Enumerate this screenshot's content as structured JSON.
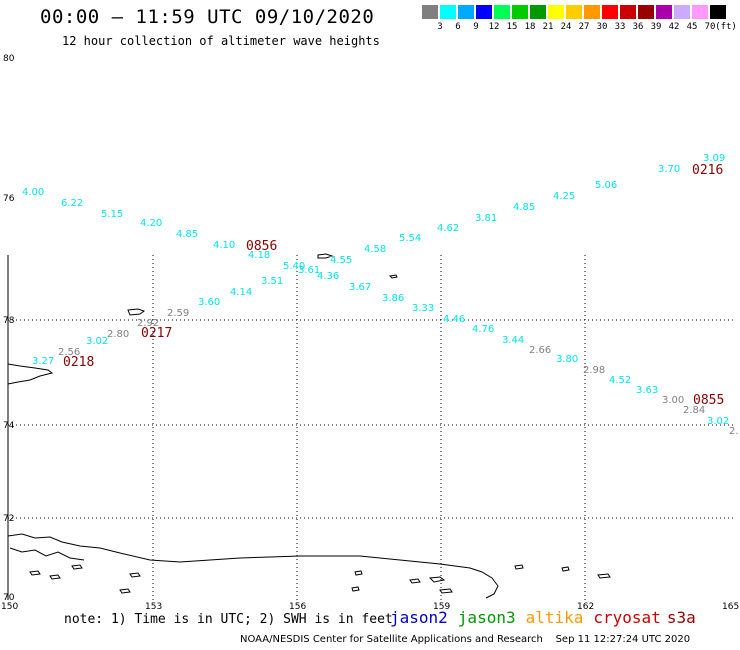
{
  "title": "00:00 – 11:59 UTC 09/10/2020",
  "subtitle": "12 hour collection of altimeter wave heights",
  "legend": {
    "colors": [
      "#808080",
      "#00ffff",
      "#00aaff",
      "#0000ff",
      "#00ff55",
      "#00cc00",
      "#009900",
      "#ffff00",
      "#ffcc00",
      "#ff9900",
      "#ff0000",
      "#cc0000",
      "#990000",
      "#aa00aa",
      "#ccaaff",
      "#ff99ff",
      "#000000"
    ],
    "labels": [
      "3",
      "6",
      "9",
      "12",
      "15",
      "18",
      "21",
      "24",
      "27",
      "30",
      "33",
      "36",
      "39",
      "42",
      "45",
      "70"
    ],
    "unit": "(ft)"
  },
  "axes": {
    "lon_ticks": [
      "150",
      "153",
      "156",
      "159",
      "162",
      "165"
    ],
    "lat_ticks": [
      "80",
      "78",
      "76",
      "74",
      "72",
      "70"
    ]
  },
  "pass_labels": [
    "0856",
    "0217",
    "0218",
    "0216",
    "0855"
  ],
  "wave_heights": {
    "cyan": [
      "4.00",
      "6.22",
      "5.15",
      "4.20",
      "4.85",
      "4.10",
      "4.18",
      "5.40",
      "3.61",
      "4.36",
      "4.55",
      "4.58",
      "5.54",
      "4.62",
      "3.81",
      "4.85",
      "4.25",
      "5.06",
      "3.70",
      "3.09",
      "3.67",
      "3.86",
      "3.33",
      "4.46",
      "4.76",
      "3.44",
      "3.80",
      "4.52",
      "3.63",
      "3.02",
      "3.51",
      "4.14",
      "3.60",
      "3.02",
      "3.27"
    ],
    "gray": [
      "2.59",
      "2.92",
      "2.80",
      "2.56",
      "2.66",
      "2.98",
      "3.00",
      "2.84",
      "2."
    ]
  },
  "note": "note: 1) Time is in UTC; 2) SWH is in feet",
  "satellites": [
    {
      "name": "jason2",
      "color": "#0000cc"
    },
    {
      "name": "jason3",
      "color": "#009900"
    },
    {
      "name": "altika",
      "color": "#ff9900"
    },
    {
      "name": "cryosat",
      "color": "#cc0000"
    },
    {
      "name": "s3a",
      "color": "#990000"
    }
  ],
  "credit": "NOAA/NESDIS Center for Satellite Applications and Research",
  "timestamp": "Sep 11 12:27:24 UTC 2020"
}
